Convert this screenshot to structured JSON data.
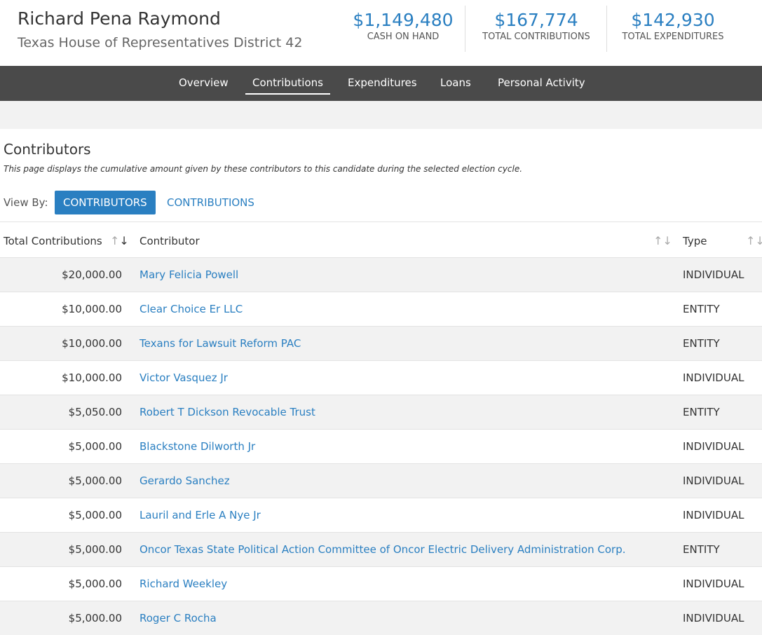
{
  "header": {
    "name": "Richard Pena Raymond",
    "office": "Texas House of Representatives District 42",
    "stats": [
      {
        "value": "$1,149,480",
        "label": "CASH ON HAND"
      },
      {
        "value": "$167,774",
        "label": "TOTAL CONTRIBUTIONS"
      },
      {
        "value": "$142,930",
        "label": "TOTAL EXPENDITURES"
      }
    ]
  },
  "nav": {
    "items": [
      "Overview",
      "Contributions",
      "Expenditures",
      "Loans",
      "Personal Activity"
    ],
    "active": 1
  },
  "section": {
    "title": "Contributors",
    "description": "This page displays the cumulative amount given by these contributors to this candidate during the selected election cycle.",
    "view_by": "View By:",
    "views": [
      "CONTRIBUTORS",
      "CONTRIBUTIONS"
    ],
    "active_view": 0
  },
  "table": {
    "columns": [
      "Total Contributions",
      "Contributor",
      "Type"
    ],
    "rows": [
      [
        "$20,000.00",
        "Mary Felicia Powell",
        "INDIVIDUAL"
      ],
      [
        "$10,000.00",
        "Clear Choice Er LLC",
        "ENTITY"
      ],
      [
        "$10,000.00",
        "Texans for Lawsuit Reform PAC",
        "ENTITY"
      ],
      [
        "$10,000.00",
        "Victor Vasquez Jr",
        "INDIVIDUAL"
      ],
      [
        "$5,050.00",
        "Robert T Dickson Revocable Trust",
        "ENTITY"
      ],
      [
        "$5,000.00",
        "Blackstone Dilworth Jr",
        "INDIVIDUAL"
      ],
      [
        "$5,000.00",
        "Gerardo Sanchez",
        "INDIVIDUAL"
      ],
      [
        "$5,000.00",
        "Lauril and Erle A Nye Jr",
        "INDIVIDUAL"
      ],
      [
        "$5,000.00",
        "Oncor Texas State Political Action Committee of Oncor Electric Delivery Administration Corp.",
        "ENTITY"
      ],
      [
        "$5,000.00",
        "Richard Weekley",
        "INDIVIDUAL"
      ],
      [
        "$5,000.00",
        "Roger C Rocha",
        "INDIVIDUAL"
      ]
    ]
  }
}
